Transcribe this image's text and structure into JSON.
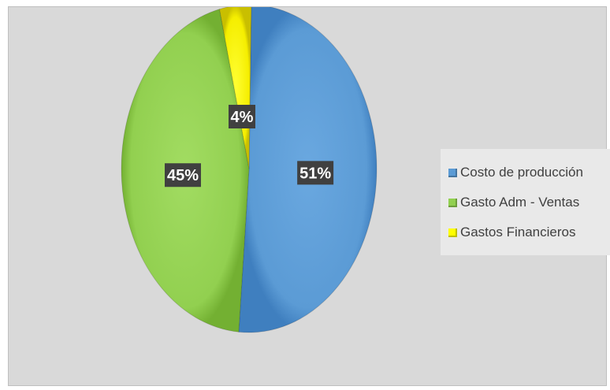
{
  "chart_data": {
    "type": "pie",
    "title": "",
    "legend_position": "right",
    "slices": [
      {
        "label": "Costo de producción",
        "value": 51,
        "display": "51%",
        "color": "#5b9bd5"
      },
      {
        "label": "Gasto Adm - Ventas",
        "value": 45,
        "display": "45%",
        "color": "#92d050"
      },
      {
        "label": "Gastos Financieros",
        "value": 4,
        "display": "4%",
        "color": "#ffff00"
      }
    ]
  }
}
